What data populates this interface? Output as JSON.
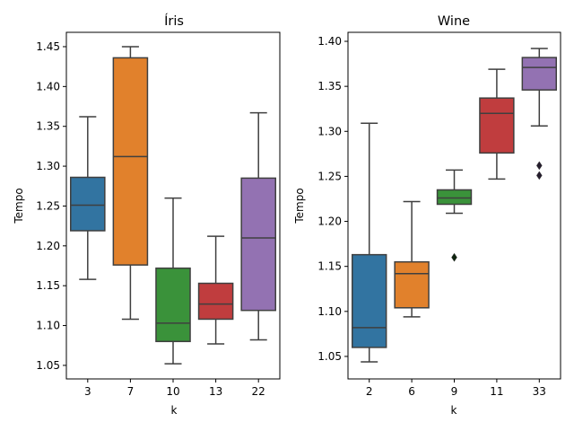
{
  "chart_data": [
    {
      "type": "box",
      "title": "Íris",
      "xlabel": "k",
      "ylabel": "Tempo",
      "ylim": [
        1.033,
        1.468
      ],
      "yticks": [
        "1.05",
        "1.10",
        "1.15",
        "1.20",
        "1.25",
        "1.30",
        "1.35",
        "1.40",
        "1.45"
      ],
      "categories": [
        "3",
        "7",
        "10",
        "13",
        "22"
      ],
      "colors": [
        "#3274a1",
        "#e1812c",
        "#3a923a",
        "#c03d3e",
        "#9372b2"
      ],
      "boxes": [
        {
          "whisker_low": 1.158,
          "q1": 1.219,
          "median": 1.251,
          "q3": 1.286,
          "whisker_high": 1.362,
          "outliers": []
        },
        {
          "whisker_low": 1.108,
          "q1": 1.176,
          "median": 1.312,
          "q3": 1.436,
          "whisker_high": 1.45,
          "outliers": []
        },
        {
          "whisker_low": 1.052,
          "q1": 1.08,
          "median": 1.103,
          "q3": 1.172,
          "whisker_high": 1.26,
          "outliers": []
        },
        {
          "whisker_low": 1.077,
          "q1": 1.108,
          "median": 1.127,
          "q3": 1.153,
          "whisker_high": 1.212,
          "outliers": []
        },
        {
          "whisker_low": 1.082,
          "q1": 1.119,
          "median": 1.21,
          "q3": 1.285,
          "whisker_high": 1.367,
          "outliers": []
        }
      ]
    },
    {
      "type": "box",
      "title": "Wine",
      "xlabel": "k",
      "ylabel": "Tempo",
      "ylim": [
        1.025,
        1.41
      ],
      "yticks": [
        "1.05",
        "1.10",
        "1.15",
        "1.20",
        "1.25",
        "1.30",
        "1.35",
        "1.40"
      ],
      "categories": [
        "2",
        "6",
        "9",
        "11",
        "33"
      ],
      "colors": [
        "#3274a1",
        "#e1812c",
        "#3a923a",
        "#c03d3e",
        "#9372b2"
      ],
      "boxes": [
        {
          "whisker_low": 1.044,
          "q1": 1.06,
          "median": 1.082,
          "q3": 1.163,
          "whisker_high": 1.309,
          "outliers": []
        },
        {
          "whisker_low": 1.094,
          "q1": 1.104,
          "median": 1.142,
          "q3": 1.155,
          "whisker_high": 1.222,
          "outliers": []
        },
        {
          "whisker_low": 1.209,
          "q1": 1.219,
          "median": 1.226,
          "q3": 1.235,
          "whisker_high": 1.257,
          "outliers": [
            1.16
          ]
        },
        {
          "whisker_low": 1.247,
          "q1": 1.276,
          "median": 1.32,
          "q3": 1.337,
          "whisker_high": 1.369,
          "outliers": []
        },
        {
          "whisker_low": 1.306,
          "q1": 1.346,
          "median": 1.371,
          "q3": 1.382,
          "whisker_high": 1.392,
          "outliers": [
            1.251,
            1.262
          ]
        }
      ]
    }
  ]
}
